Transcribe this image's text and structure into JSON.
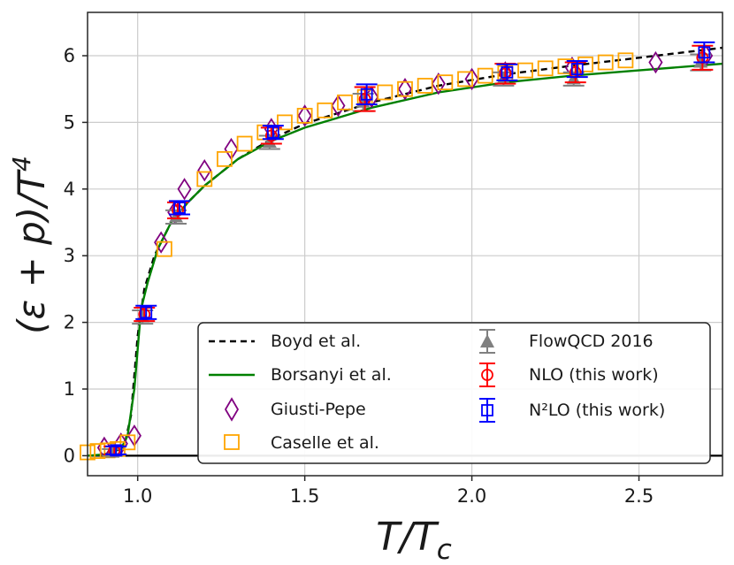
{
  "chart_data": {
    "type": "line",
    "xlabel": "T/T_c",
    "ylabel": "(ε + p)/T^4",
    "xlim": [
      0.85,
      2.75
    ],
    "ylim": [
      -0.3,
      6.65
    ],
    "grid": true,
    "legend_position": "bottom-right",
    "xticks": [
      1.0,
      1.5,
      2.0,
      2.5
    ],
    "xtick_labels": [
      "1.0",
      "1.5",
      "2.0",
      "2.5"
    ],
    "yticks": [
      0,
      1,
      2,
      3,
      4,
      5,
      6
    ],
    "ytick_labels": [
      "0",
      "1",
      "2",
      "3",
      "4",
      "5",
      "6"
    ],
    "hline_y": 0,
    "legend": {
      "col1": [
        "Boyd et al.",
        "Borsanyi et al.",
        "Giusti-Pepe",
        "Caselle et al."
      ],
      "col2": [
        "FlowQCD 2016",
        "NLO (this work)",
        "N²LO (this work)"
      ]
    },
    "series": [
      {
        "name": "Boyd et al.",
        "kind": "line",
        "color": "#000000",
        "dash": true,
        "x": [
          0.92,
          0.96,
          0.98,
          1.0,
          1.02,
          1.05,
          1.1,
          1.15,
          1.2,
          1.3,
          1.4,
          1.5,
          1.7,
          1.9,
          2.1,
          2.3,
          2.5,
          2.75
        ],
        "y": [
          0.0,
          0.15,
          0.6,
          1.8,
          2.5,
          3.0,
          3.5,
          3.8,
          4.05,
          4.45,
          4.75,
          4.98,
          5.3,
          5.55,
          5.72,
          5.85,
          5.97,
          6.12
        ]
      },
      {
        "name": "Borsanyi et al.",
        "kind": "line",
        "color": "#008000",
        "dash": false,
        "x": [
          0.85,
          0.9,
          0.95,
          0.97,
          0.99,
          1.01,
          1.03,
          1.06,
          1.1,
          1.15,
          1.2,
          1.3,
          1.4,
          1.5,
          1.7,
          1.9,
          2.1,
          2.3,
          2.5,
          2.75
        ],
        "y": [
          0.0,
          0.02,
          0.1,
          0.3,
          1.0,
          2.2,
          2.6,
          3.1,
          3.5,
          3.8,
          4.05,
          4.45,
          4.72,
          4.92,
          5.22,
          5.45,
          5.6,
          5.7,
          5.78,
          5.88
        ]
      },
      {
        "name": "Giusti-Pepe",
        "kind": "marker",
        "marker": "diamond",
        "color": "#800080",
        "x": [
          0.9,
          0.95,
          0.99,
          1.07,
          1.11,
          1.14,
          1.2,
          1.28,
          1.4,
          1.5,
          1.6,
          1.7,
          1.8,
          1.9,
          2.0,
          2.1,
          2.3,
          2.55,
          2.7
        ],
        "y": [
          0.12,
          0.18,
          0.3,
          3.2,
          3.65,
          4.0,
          4.28,
          4.6,
          4.9,
          5.1,
          5.25,
          5.38,
          5.5,
          5.58,
          5.65,
          5.75,
          5.82,
          5.9,
          6.0
        ]
      },
      {
        "name": "Caselle et al.",
        "kind": "marker",
        "marker": "square",
        "color": "#ffa500",
        "x": [
          0.85,
          0.88,
          0.91,
          0.94,
          0.97,
          1.08,
          1.2,
          1.26,
          1.32,
          1.38,
          1.44,
          1.5,
          1.56,
          1.62,
          1.68,
          1.74,
          1.8,
          1.86,
          1.92,
          1.98,
          2.04,
          2.1,
          2.16,
          2.22,
          2.28,
          2.34,
          2.4,
          2.46
        ],
        "y": [
          0.05,
          0.07,
          0.08,
          0.1,
          0.2,
          3.1,
          4.15,
          4.45,
          4.68,
          4.85,
          5.0,
          5.1,
          5.18,
          5.3,
          5.38,
          5.45,
          5.5,
          5.55,
          5.6,
          5.65,
          5.7,
          5.74,
          5.78,
          5.81,
          5.84,
          5.87,
          5.9,
          5.93
        ]
      },
      {
        "name": "FlowQCD 2016",
        "kind": "errorbar",
        "marker": "triangle",
        "color": "#808080",
        "x": [
          0.93,
          1.02,
          1.12,
          1.4,
          1.68,
          2.1,
          2.31,
          2.69
        ],
        "y": [
          0.05,
          2.08,
          3.58,
          4.7,
          5.3,
          5.65,
          5.65,
          5.9
        ],
        "err": [
          0.05,
          0.1,
          0.1,
          0.1,
          0.13,
          0.1,
          0.1,
          0.12
        ]
      },
      {
        "name": "NLO (this work)",
        "kind": "errorbar",
        "marker": "circle",
        "color": "#ff0000",
        "x": [
          0.93,
          1.02,
          1.12,
          1.4,
          1.68,
          2.1,
          2.31,
          2.69
        ],
        "y": [
          0.08,
          2.12,
          3.68,
          4.8,
          5.35,
          5.73,
          5.75,
          5.97
        ],
        "err": [
          0.06,
          0.1,
          0.12,
          0.12,
          0.18,
          0.15,
          0.15,
          0.18
        ]
      },
      {
        "name": "N²LO (this work)",
        "kind": "errorbar",
        "marker": "square-open",
        "color": "#0000ff",
        "x": [
          0.93,
          1.02,
          1.12,
          1.4,
          1.68,
          2.1,
          2.31,
          2.69
        ],
        "y": [
          0.08,
          2.15,
          3.72,
          4.85,
          5.42,
          5.75,
          5.8,
          6.05
        ],
        "err": [
          0.06,
          0.1,
          0.1,
          0.1,
          0.15,
          0.12,
          0.12,
          0.15
        ]
      }
    ]
  }
}
